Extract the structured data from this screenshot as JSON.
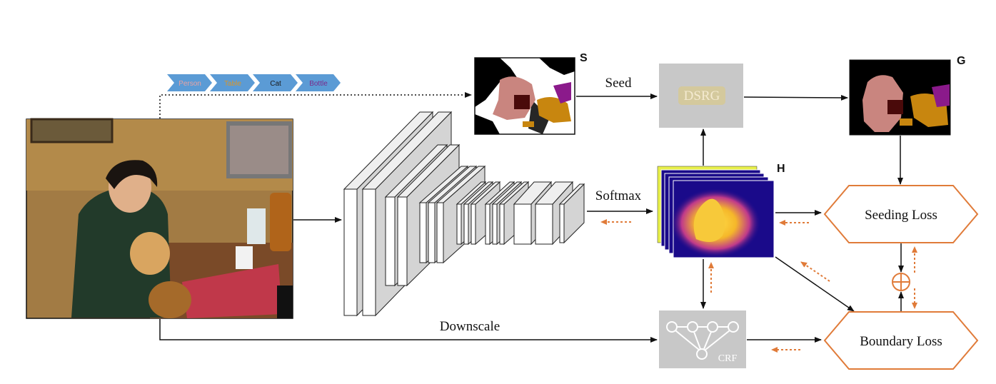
{
  "tags": [
    {
      "label": "Person",
      "color": "#e8a3a3"
    },
    {
      "label": "Table",
      "color": "#d9962a"
    },
    {
      "label": "Cat",
      "color": "#1a1a1a"
    },
    {
      "label": "Bottle",
      "color": "#7a2a8a"
    }
  ],
  "labels": {
    "seed_map": "S",
    "refined_map": "G",
    "heatmap": "H",
    "seed_arrow": "Seed",
    "softmax_arrow": "Softmax",
    "downscale_arrow": "Downscale",
    "dsrg_box": "DSRG",
    "crf_box": "CRF",
    "seeding_loss": "Seeding Loss",
    "boundary_loss": "Boundary Loss"
  },
  "colors": {
    "arrow_black": "#111111",
    "arrow_orange_dotted": "#e07b39",
    "loss_hexagon_stroke": "#e07b39",
    "gray_box": "#c8c8c8",
    "tag_fill": "#5b9bd5",
    "seg_person": "#c9857f",
    "seg_table": "#c8860f",
    "seg_cat": "#4a0a0a",
    "seg_bottle": "#8b1a8b",
    "heatmap_bg": "#1a0a8a",
    "heatmap_hot": "#f5c02a"
  }
}
